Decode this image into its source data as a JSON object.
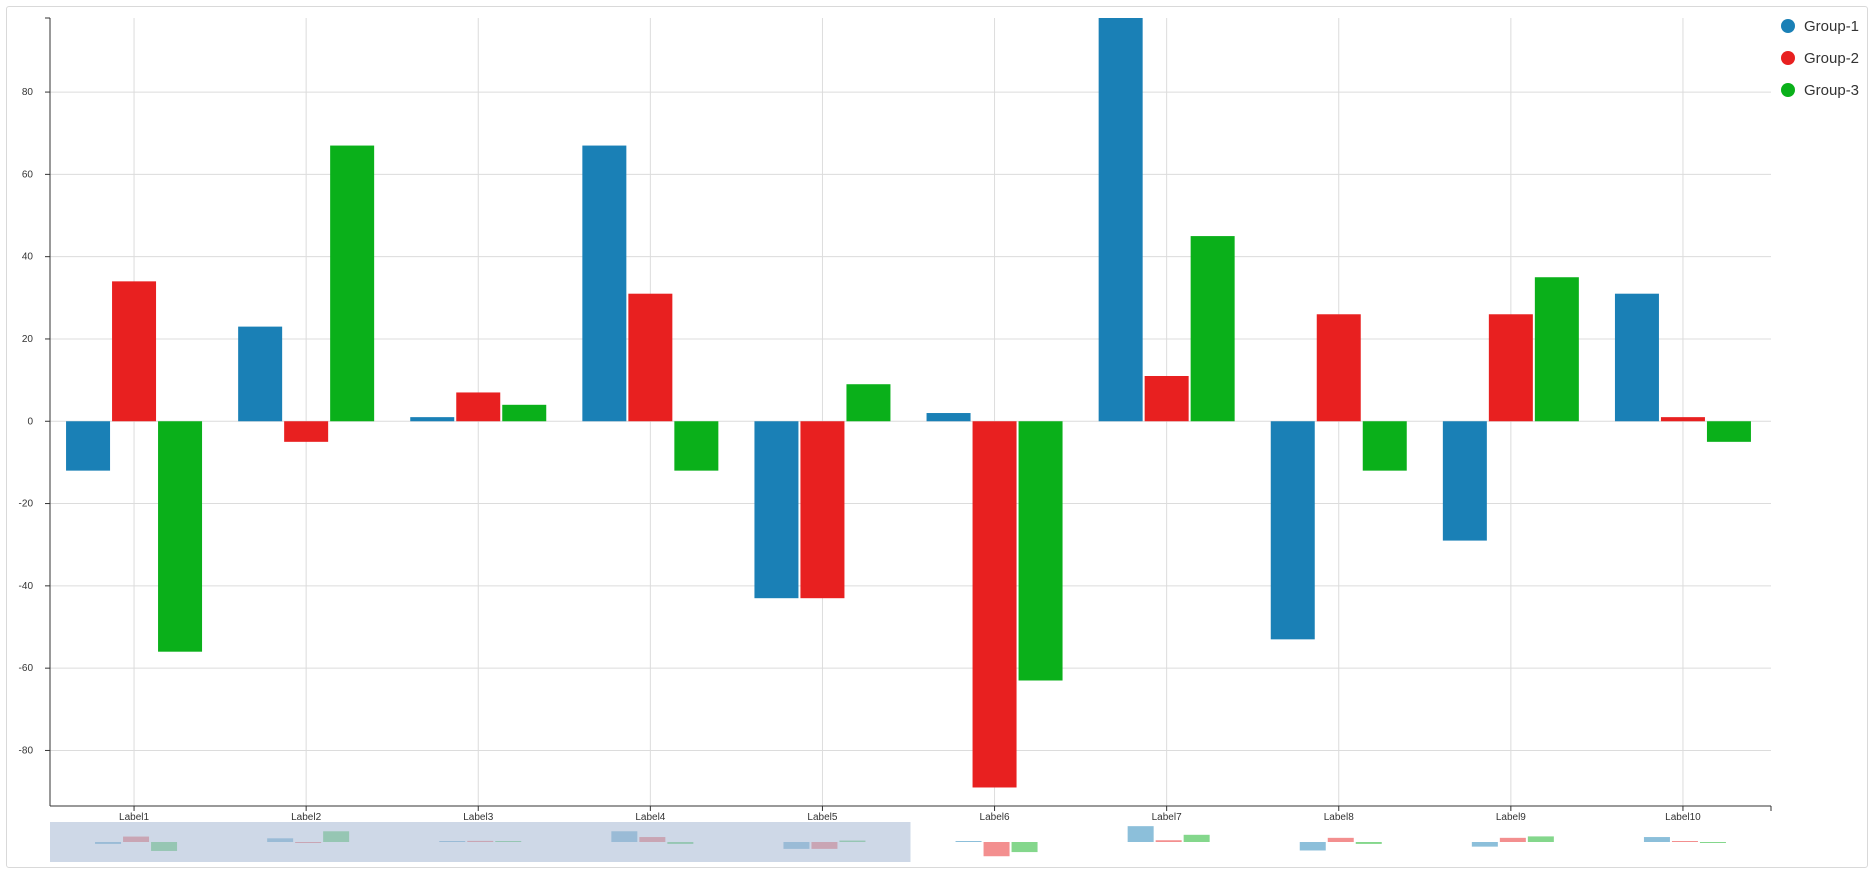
{
  "chart_data": {
    "type": "bar",
    "categories": [
      "Label1",
      "Label2",
      "Label3",
      "Label4",
      "Label5",
      "Label6",
      "Label7",
      "Label8",
      "Label9",
      "Label10"
    ],
    "series": [
      {
        "name": "Group-1",
        "color": "#1a80b6",
        "values": [
          -12,
          23,
          1,
          67,
          -43,
          2,
          99,
          -53,
          -29,
          31
        ]
      },
      {
        "name": "Group-2",
        "color": "#e82020",
        "values": [
          34,
          -5,
          7,
          31,
          -43,
          -89,
          11,
          26,
          26,
          1
        ]
      },
      {
        "name": "Group-3",
        "color": "#0ab01a",
        "values": [
          -56,
          67,
          4,
          -12,
          9,
          -63,
          45,
          -12,
          35,
          -5
        ]
      }
    ],
    "yticks": [
      -80,
      -60,
      -40,
      -20,
      0,
      20,
      40,
      60,
      80
    ],
    "ylim": [
      -93.5,
      98
    ],
    "grid": true,
    "legend_position": "top-right",
    "navigator": {
      "visible": true,
      "selected_fraction": 0.5
    }
  }
}
